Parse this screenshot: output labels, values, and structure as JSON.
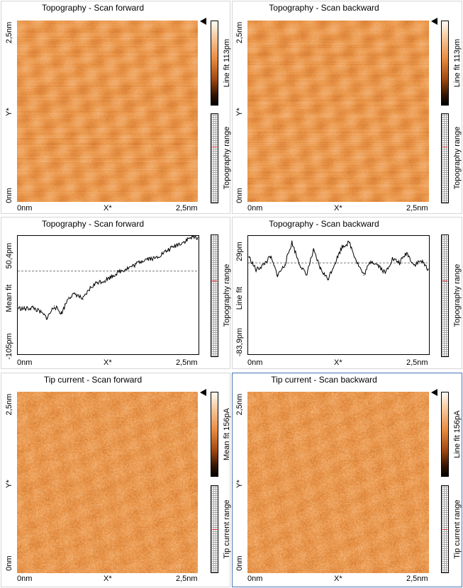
{
  "panels": [
    {
      "title": "Topography - Scan forward",
      "y_top": "2,5nm",
      "y_mid": "Y*",
      "y_bot": "0nm",
      "x_left": "0nm",
      "x_mid": "X*",
      "x_right": "2,5nm",
      "cbar_label": "Line fit 113pm",
      "range_label": "Topography range"
    },
    {
      "title": "Topography - Scan backward",
      "y_top": "2,5nm",
      "y_mid": "Y*",
      "y_bot": "0nm",
      "x_left": "0nm",
      "x_mid": "X*",
      "x_right": "2,5nm",
      "cbar_label": "Line fit 113pm",
      "range_label": "Topography range"
    },
    {
      "title": "Topography - Scan forward",
      "y_top": "50,4pm",
      "y_mid": "Mean fit",
      "y_bot": "-105pm",
      "x_left": "0nm",
      "x_mid": "X*",
      "x_right": "2,5nm",
      "range_label": "Topography range"
    },
    {
      "title": "Topography - Scan backward",
      "y_top": "29pm",
      "y_mid": "Line fit",
      "y_bot": "-83,9pm",
      "x_left": "0nm",
      "x_mid": "X*",
      "x_right": "2,5nm",
      "range_label": "Topography range"
    },
    {
      "title": "Tip current - Scan forward",
      "y_top": "2,5nm",
      "y_mid": "Y*",
      "y_bot": "0nm",
      "x_left": "0nm",
      "x_mid": "X*",
      "x_right": "2,5nm",
      "cbar_label": "Mean fit 156pA",
      "range_label": "Tip current range"
    },
    {
      "title": "Tip current - Scan backward",
      "y_top": "2,5nm",
      "y_mid": "Y*",
      "y_bot": "0nm",
      "x_left": "0nm",
      "x_mid": "X*",
      "x_right": "2,5nm",
      "cbar_label": "Line fit 156pA",
      "range_label": "Tip current range"
    }
  ],
  "colors": {
    "image_base": "#ec9a4e",
    "image_light": "#f7c79b",
    "image_dark": "#c96a24",
    "active_border": "#4a74b8",
    "mean_line": "#7a7a7a"
  },
  "icons": {
    "colorbar_pointer": "triangle-left-icon"
  },
  "chart_data": [
    {
      "type": "line",
      "title": "Topography - Scan forward",
      "xlabel": "X*",
      "ylabel": "Mean fit",
      "ylim": [
        -105,
        50.4
      ],
      "x": [
        0,
        0.1,
        0.2,
        0.3,
        0.4,
        0.5,
        0.6,
        0.7,
        0.8,
        0.9,
        1.0,
        1.1,
        1.2,
        1.3,
        1.4,
        1.5,
        1.6,
        1.7,
        1.8,
        1.9,
        2.0,
        2.1,
        2.2,
        2.3,
        2.4,
        2.5
      ],
      "series": [
        {
          "values": [
            -45,
            -46,
            -44,
            -50,
            -58,
            -42,
            -52,
            -30,
            -26,
            -33,
            -18,
            -10,
            -8,
            -2,
            4,
            8,
            12,
            18,
            22,
            22,
            28,
            34,
            40,
            44,
            50,
            50.4
          ]
        }
      ],
      "mean": 5
    },
    {
      "type": "line",
      "title": "Topography - Scan backward",
      "xlabel": "X*",
      "ylabel": "Line fit",
      "ylim": [
        -83.9,
        29
      ],
      "x": [
        0,
        0.1,
        0.2,
        0.3,
        0.4,
        0.5,
        0.6,
        0.7,
        0.8,
        0.9,
        1.0,
        1.1,
        1.2,
        1.3,
        1.4,
        1.5,
        1.6,
        1.7,
        1.8,
        1.9,
        2.0,
        2.1,
        2.2,
        2.3,
        2.4,
        2.5
      ],
      "series": [
        {
          "values": [
            10,
            -3,
            2,
            10,
            -8,
            2,
            24,
            4,
            -8,
            16,
            -2,
            -12,
            4,
            20,
            24,
            6,
            -8,
            6,
            2,
            -6,
            8,
            4,
            14,
            2,
            6,
            -2
          ]
        }
      ],
      "mean": 4
    }
  ]
}
